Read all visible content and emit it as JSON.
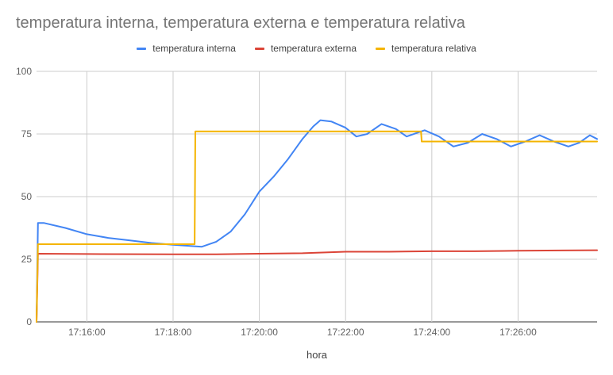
{
  "chart_data": {
    "type": "line",
    "title": "temperatura interna, temperatura externa e temperatura relativa",
    "xlabel": "hora",
    "ylabel": "",
    "ylim": [
      0,
      100
    ],
    "yticks": [
      "0",
      "25",
      "50",
      "75",
      "100"
    ],
    "xticks": [
      "17:16:00",
      "17:18:00",
      "17:20:00",
      "17:22:00",
      "17:24:00",
      "17:26:00"
    ],
    "xlim": [
      "17:14:50",
      "17:27:50"
    ],
    "legend_position": "top",
    "grid": true,
    "series": [
      {
        "name": "temperatura interna",
        "color": "#4285f4",
        "points": [
          [
            "17:14:50",
            0
          ],
          [
            "17:14:52",
            39.5
          ],
          [
            "17:15:00",
            39.5
          ],
          [
            "17:15:30",
            37.5
          ],
          [
            "17:16:00",
            35.0
          ],
          [
            "17:16:30",
            33.5
          ],
          [
            "17:17:00",
            32.5
          ],
          [
            "17:17:30",
            31.5
          ],
          [
            "17:18:00",
            30.8
          ],
          [
            "17:18:30",
            30.2
          ],
          [
            "17:18:40",
            30.0
          ],
          [
            "17:19:00",
            32.0
          ],
          [
            "17:19:20",
            36.0
          ],
          [
            "17:19:40",
            43.0
          ],
          [
            "17:20:00",
            52.0
          ],
          [
            "17:20:20",
            58.0
          ],
          [
            "17:20:40",
            65.0
          ],
          [
            "17:21:00",
            73.0
          ],
          [
            "17:21:15",
            78.0
          ],
          [
            "17:21:25",
            80.5
          ],
          [
            "17:21:40",
            80.0
          ],
          [
            "17:22:00",
            77.5
          ],
          [
            "17:22:15",
            74.0
          ],
          [
            "17:22:30",
            75.0
          ],
          [
            "17:22:50",
            79.0
          ],
          [
            "17:23:10",
            77.0
          ],
          [
            "17:23:25",
            74.0
          ],
          [
            "17:23:40",
            75.5
          ],
          [
            "17:23:50",
            76.5
          ],
          [
            "17:24:10",
            74.0
          ],
          [
            "17:24:30",
            70.0
          ],
          [
            "17:24:50",
            71.5
          ],
          [
            "17:25:10",
            75.0
          ],
          [
            "17:25:30",
            73.0
          ],
          [
            "17:25:50",
            70.0
          ],
          [
            "17:26:10",
            72.0
          ],
          [
            "17:26:30",
            74.5
          ],
          [
            "17:26:50",
            72.0
          ],
          [
            "17:27:10",
            70.0
          ],
          [
            "17:27:25",
            71.5
          ],
          [
            "17:27:40",
            74.5
          ],
          [
            "17:27:50",
            73.0
          ]
        ]
      },
      {
        "name": "temperatura externa",
        "color": "#db4437",
        "points": [
          [
            "17:14:50",
            0
          ],
          [
            "17:14:52",
            27.2
          ],
          [
            "17:16:00",
            27.1
          ],
          [
            "17:18:00",
            27.0
          ],
          [
            "17:19:00",
            27.0
          ],
          [
            "17:20:00",
            27.2
          ],
          [
            "17:21:00",
            27.4
          ],
          [
            "17:22:00",
            28.0
          ],
          [
            "17:23:00",
            28.0
          ],
          [
            "17:24:00",
            28.2
          ],
          [
            "17:25:00",
            28.2
          ],
          [
            "17:26:00",
            28.4
          ],
          [
            "17:27:00",
            28.5
          ],
          [
            "17:27:50",
            28.6
          ]
        ]
      },
      {
        "name": "temperatura relativa",
        "color": "#f4b400",
        "points": [
          [
            "17:14:50",
            0
          ],
          [
            "17:14:52",
            31.0
          ],
          [
            "17:18:30",
            31.0
          ],
          [
            "17:18:31",
            76.0
          ],
          [
            "17:23:45",
            76.0
          ],
          [
            "17:23:46",
            72.0
          ],
          [
            "17:27:50",
            72.0
          ]
        ]
      }
    ]
  }
}
